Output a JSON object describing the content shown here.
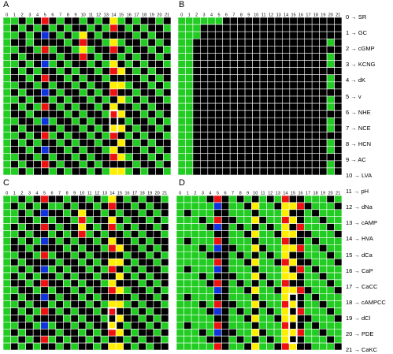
{
  "panels": [
    {
      "label": "A",
      "rows": 22,
      "cols": 22,
      "col_headers": [
        "0",
        "1",
        "2",
        "3",
        "4",
        "5",
        "6",
        "7",
        "8",
        "9",
        "10",
        "11",
        "12",
        "13",
        "14",
        "15",
        "16",
        "17",
        "18",
        "19",
        "20",
        "21"
      ]
    },
    {
      "label": "B",
      "rows": 22,
      "cols": 22,
      "col_headers": [
        "0",
        "1",
        "2",
        "3",
        "4",
        "5",
        "6",
        "7",
        "8",
        "9",
        "10",
        "11",
        "12",
        "13",
        "14",
        "15",
        "16",
        "17",
        "18",
        "19",
        "20",
        "21"
      ]
    },
    {
      "label": "C",
      "rows": 22,
      "cols": 22,
      "col_headers": [
        "0",
        "1",
        "2",
        "3",
        "4",
        "5",
        "6",
        "7",
        "8",
        "9",
        "10",
        "11",
        "12",
        "13",
        "14",
        "15",
        "16",
        "17",
        "18",
        "19",
        "20",
        "21"
      ]
    },
    {
      "label": "D",
      "rows": 22,
      "cols": 22,
      "col_headers": [
        "0",
        "1",
        "2",
        "3",
        "4",
        "5",
        "6",
        "7",
        "8",
        "9",
        "10",
        "11",
        "12",
        "13",
        "14",
        "15",
        "16",
        "17",
        "18",
        "19",
        "20",
        "21"
      ]
    }
  ],
  "legend": [
    {
      "index": "0",
      "name": "SR"
    },
    {
      "index": "1",
      "name": "GC"
    },
    {
      "index": "2",
      "name": "cGMP"
    },
    {
      "index": "3",
      "name": "KCNG"
    },
    {
      "index": "4",
      "name": "dK"
    },
    {
      "index": "5",
      "name": "v"
    },
    {
      "index": "6",
      "name": "NHE"
    },
    {
      "index": "7",
      "name": "NCE"
    },
    {
      "index": "8",
      "name": "HCN"
    },
    {
      "index": "9",
      "name": "AC"
    },
    {
      "index": "10",
      "name": "LVA"
    },
    {
      "index": "11",
      "name": "pH"
    },
    {
      "index": "12",
      "name": "dNa"
    },
    {
      "index": "13",
      "name": "cAMP"
    },
    {
      "index": "14",
      "name": "HVA"
    },
    {
      "index": "15",
      "name": "dCa"
    },
    {
      "index": "16",
      "name": "CaP"
    },
    {
      "index": "17",
      "name": "CaCC"
    },
    {
      "index": "18",
      "name": "cAMPCC"
    },
    {
      "index": "19",
      "name": "dCl"
    },
    {
      "index": "20",
      "name": "PDE"
    },
    {
      "index": "21",
      "name": "CaKC"
    }
  ],
  "arrow": "→",
  "colors": {
    "green": "#22cc22",
    "black": "#000000",
    "red": "#ee1111",
    "yellow": "#ffee00",
    "blue": "#1133dd",
    "grid": "#ffffff",
    "highlight": "#ffffff"
  }
}
